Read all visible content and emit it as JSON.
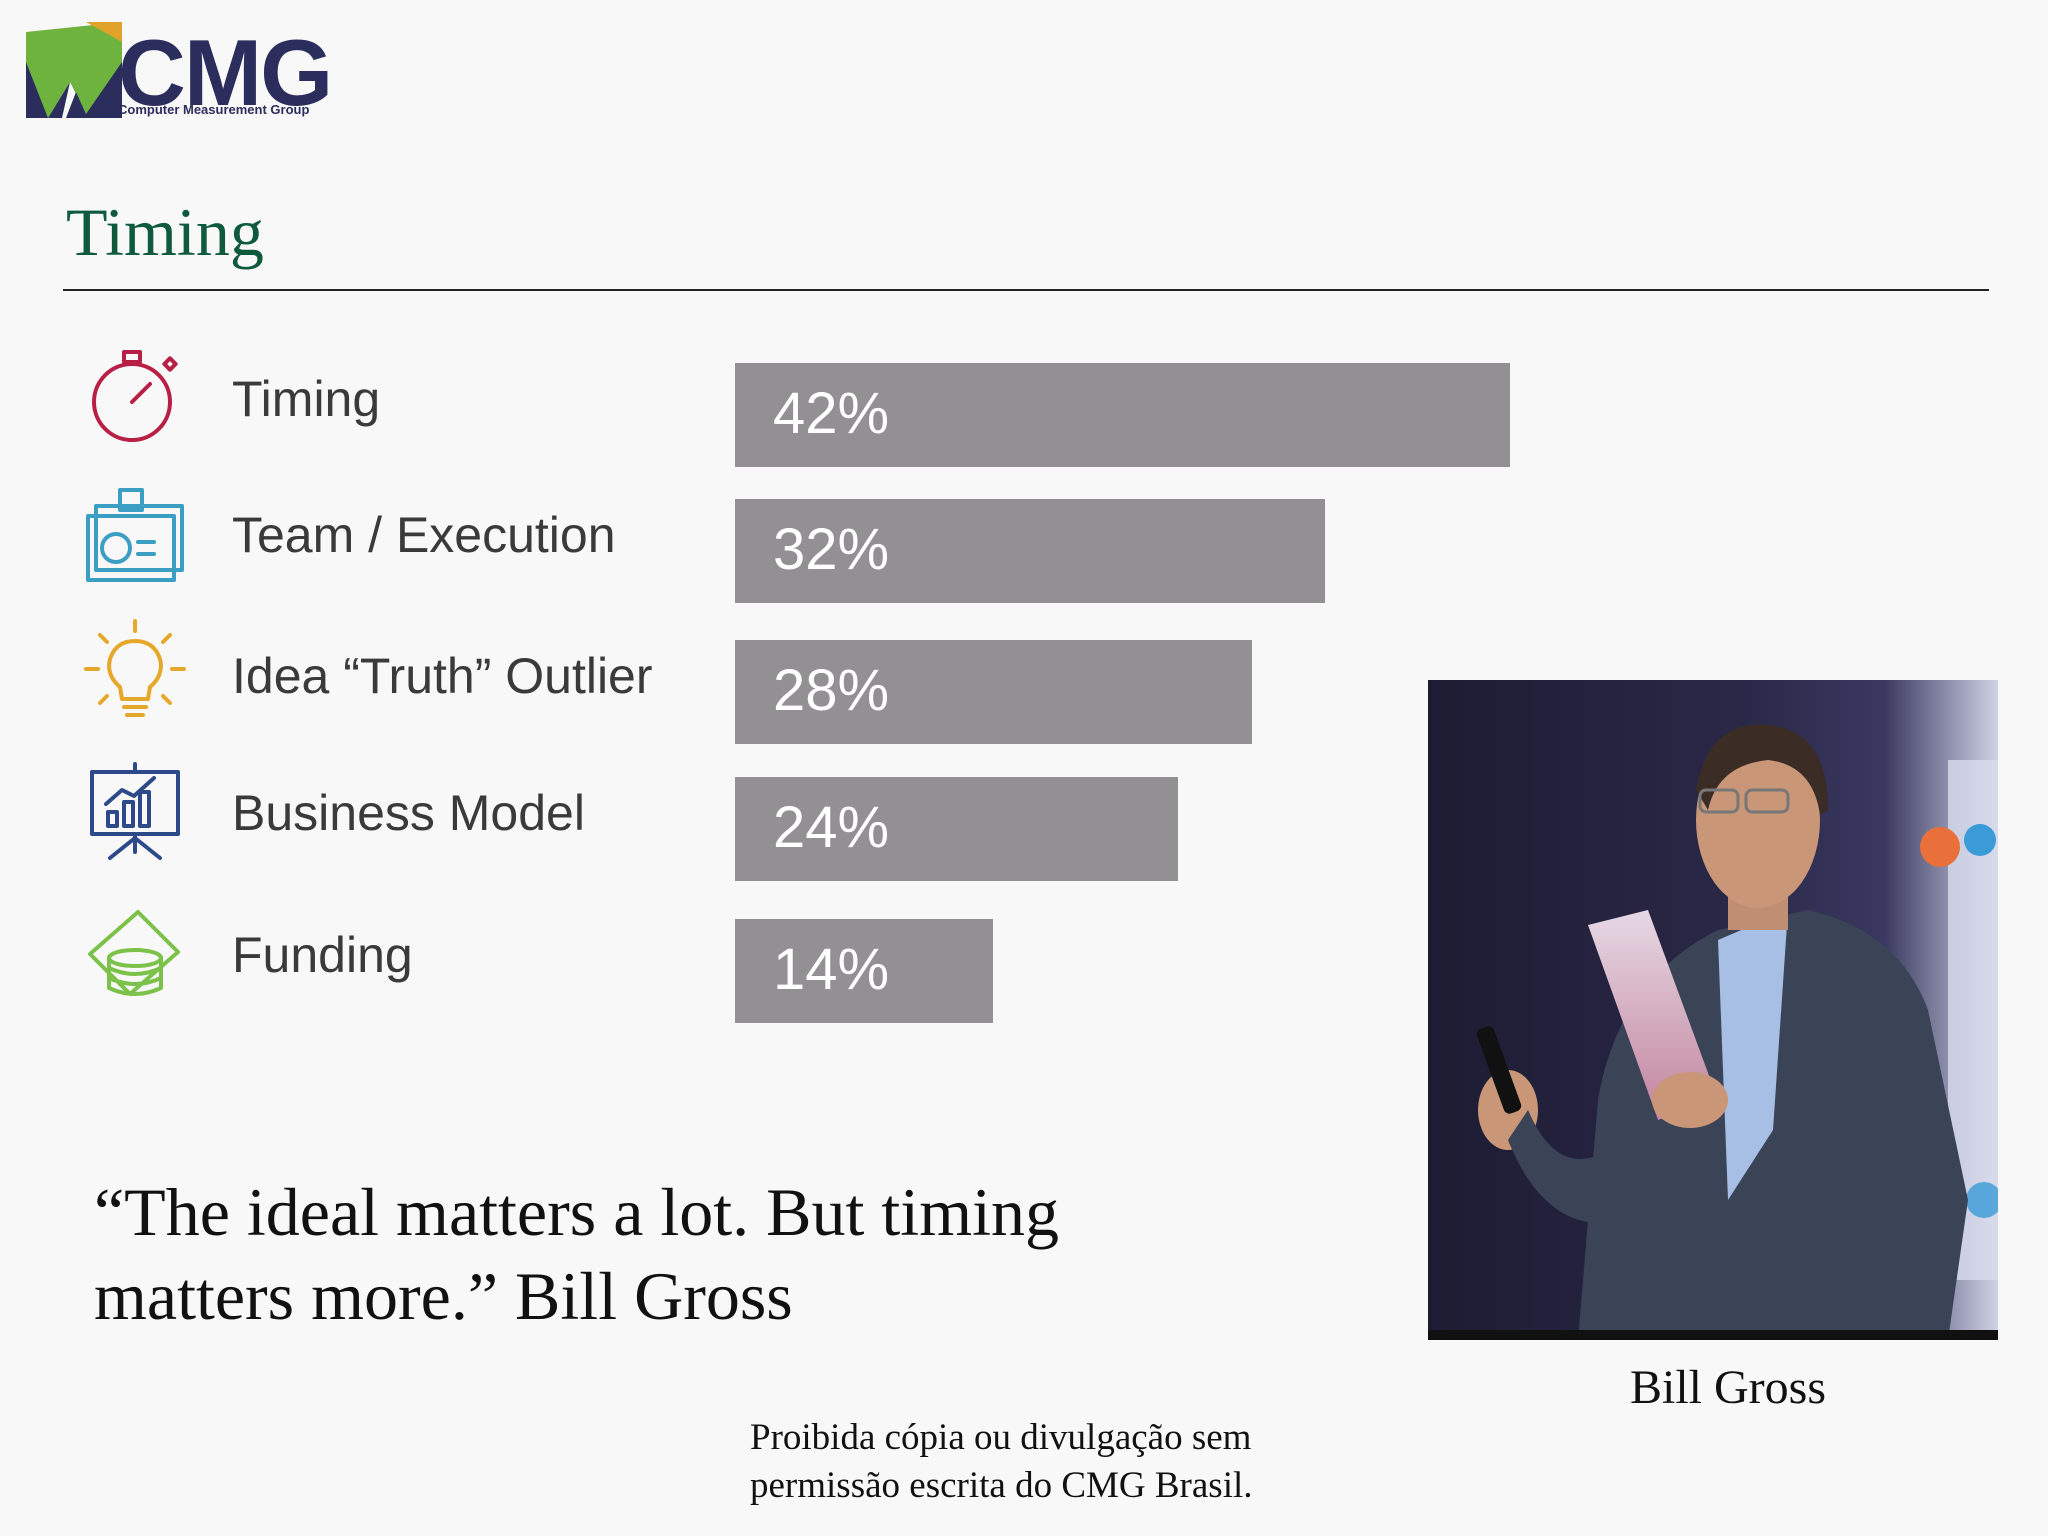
{
  "logo": {
    "name": "CMG",
    "subtitle": "Computer Measurement Group"
  },
  "title": "Timing",
  "chart_data": {
    "type": "bar",
    "categories": [
      "Timing",
      "Team / Execution",
      "Idea “Truth” Outlier",
      "Business Model",
      "Funding"
    ],
    "values": [
      42,
      32,
      28,
      24,
      14
    ],
    "value_labels": [
      "42%",
      "32%",
      "28%",
      "24%",
      "14%"
    ],
    "icons": [
      "stopwatch-icon",
      "id-badge-icon",
      "lightbulb-icon",
      "presentation-chart-icon",
      "money-stack-icon"
    ],
    "icon_colors": [
      "#b81f45",
      "#3a9fc2",
      "#e6a82a",
      "#2c4a8a",
      "#7cc24a"
    ],
    "bar_color": "#929092",
    "orientation": "horizontal",
    "title": "",
    "xlabel": "",
    "ylabel": ""
  },
  "quote": {
    "line1": "“The ideal matters a lot. But timing",
    "line2": "matters more.” Bill Gross"
  },
  "photo": {
    "caption": "Bill Gross"
  },
  "footer": {
    "line1": "Proibida cópia ou divulgação sem",
    "line2": "permissão escrita do CMG Brasil."
  },
  "colors": {
    "title": "#0f5a3c",
    "logo_text": "#2b2e5c",
    "logo_green": "#6fb33f"
  }
}
